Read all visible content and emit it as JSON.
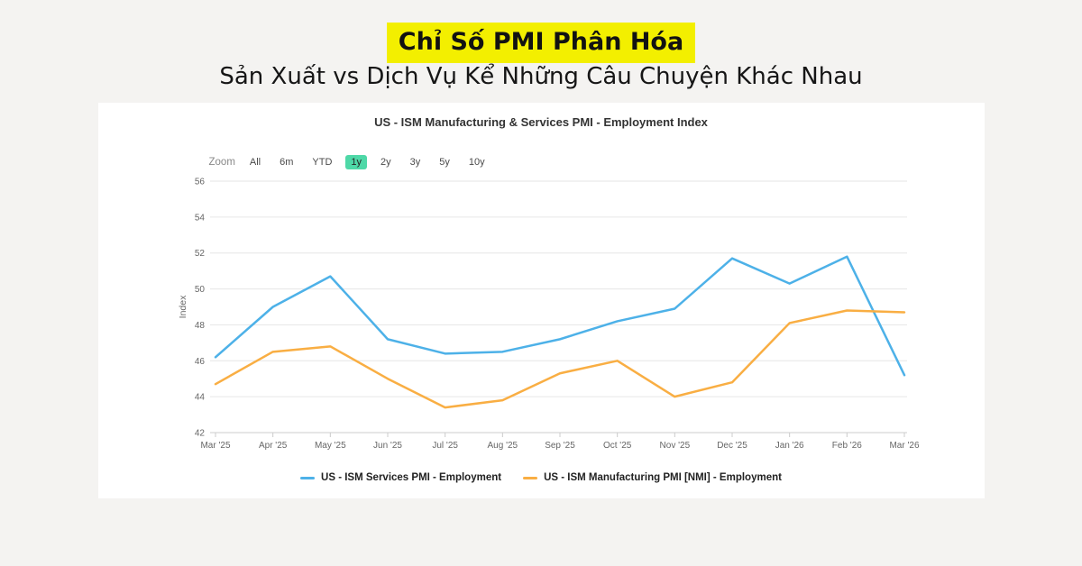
{
  "page": {
    "title": "Chỉ Số PMI Phân Hóa",
    "subtitle": "Sản Xuất vs Dịch Vụ Kể Những Câu Chuyện Khác Nhau",
    "highlight_color": "#f3ef00",
    "background_color": "#f4f3f1"
  },
  "chart": {
    "title": "US - ISM Manufacturing & Services PMI - Employment Index",
    "zoom_label": "Zoom",
    "zoom_buttons": [
      "All",
      "6m",
      "YTD",
      "1y",
      "2y",
      "3y",
      "5y",
      "10y"
    ],
    "zoom_selected": "1y",
    "zoom_selected_color": "#4ed8a7"
  },
  "chart_data": {
    "type": "line",
    "title": "US - ISM Manufacturing & Services PMI - Employment Index",
    "xlabel": "",
    "ylabel": "Index",
    "ylim": [
      42,
      56
    ],
    "yticks": [
      42,
      44,
      46,
      48,
      50,
      52,
      54,
      56
    ],
    "grid": true,
    "legend_position": "bottom",
    "categories": [
      "Mar '25",
      "Apr '25",
      "May '25",
      "Jun '25",
      "Jul '25",
      "Aug '25",
      "Sep '25",
      "Oct '25",
      "Nov '25",
      "Dec '25",
      "Jan '26",
      "Feb '26",
      "Mar '26"
    ],
    "series": [
      {
        "name": "US - ISM Services PMI - Employment",
        "color": "#4db1e8",
        "values": [
          46.2,
          49.0,
          50.7,
          47.2,
          46.4,
          46.5,
          47.2,
          48.2,
          48.9,
          51.7,
          50.3,
          51.8,
          45.2
        ]
      },
      {
        "name": "US - ISM Manufacturing PMI [NMI] - Employment",
        "color": "#f9ae43",
        "values": [
          44.7,
          46.5,
          46.8,
          45.0,
          43.4,
          43.8,
          45.3,
          46.0,
          44.0,
          44.8,
          48.1,
          48.8,
          48.7
        ]
      }
    ],
    "colors": {
      "gridline": "#e6e6e6",
      "axis_line": "#cccccc",
      "tick_text": "#666666"
    }
  }
}
